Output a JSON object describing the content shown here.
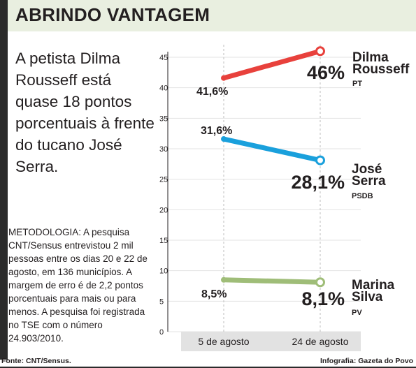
{
  "header": {
    "title": "ABRINDO VANTAGEM"
  },
  "deck": {
    "text": "A petista Dilma Rousseff está quase 18 pontos porcentuais à frente do tucano José Serra."
  },
  "methodology": {
    "label": "METODOLOGIA",
    "text": ": A pesquisa CNT/Sensus entrevistou 2 mil pessoas entre os dias 20 e 22 de agosto, em 136 municípios. A margem de erro é de 2,2 pontos porcentuais para mais ou para menos. A pesquisa foi registrada no TSE com o número 24.903/2010."
  },
  "footer": {
    "source": "Fonte: CNT/Sensus.",
    "credit": "Infografia: Gazeta do Povo"
  },
  "chart_data": {
    "type": "line",
    "x": [
      "5 de agosto",
      "24 de agosto"
    ],
    "ylim": [
      0,
      45
    ],
    "yticks": [
      0,
      5,
      10,
      15,
      20,
      25,
      30,
      35,
      40,
      45
    ],
    "series": [
      {
        "name_line1": "Dilma",
        "name_line2": "Rousseff",
        "party": "PT",
        "values": [
          41.6,
          46
        ],
        "labels": [
          "41,6%",
          "46%"
        ],
        "color": "#e8413c"
      },
      {
        "name_line1": "José",
        "name_line2": "Serra",
        "party": "PSDB",
        "values": [
          31.6,
          28.1
        ],
        "labels": [
          "31,6%",
          "28,1%"
        ],
        "color": "#1aa0dc"
      },
      {
        "name_line1": "Marina",
        "name_line2": "Silva",
        "party": "PV",
        "values": [
          8.5,
          8.1
        ],
        "labels": [
          "8,5%",
          "8,1%"
        ],
        "color": "#9fbd78"
      }
    ],
    "grid": true
  }
}
